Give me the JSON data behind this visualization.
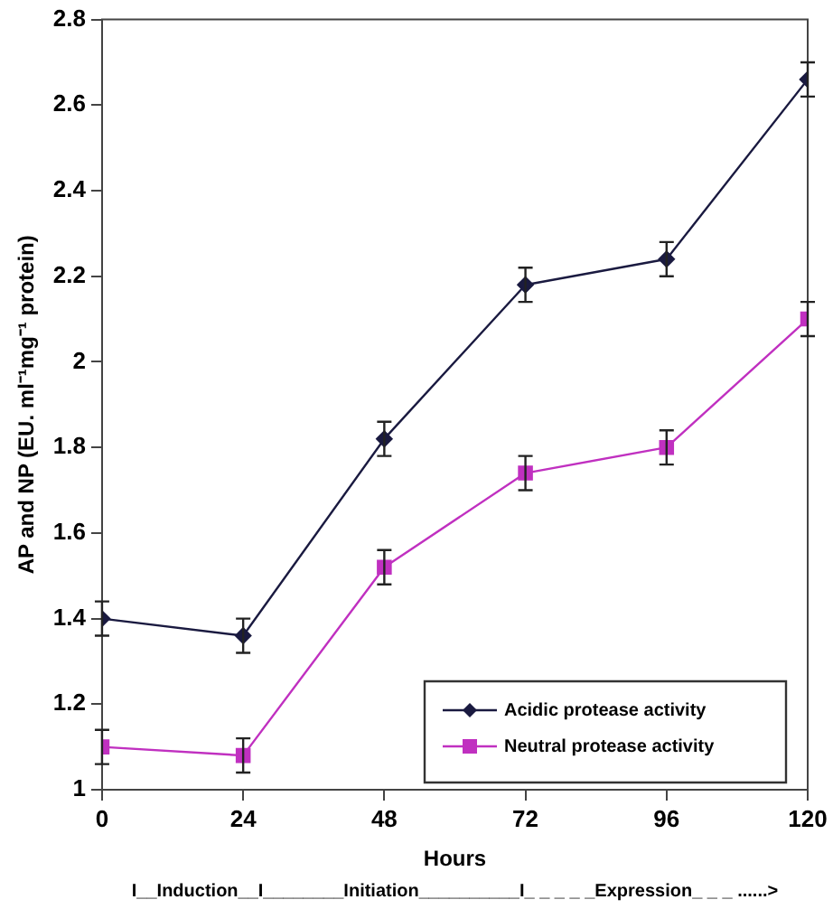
{
  "chart_data": {
    "type": "line",
    "xlabel": "Hours",
    "ylabel": "AP and NP (EU. ml⁻¹mg⁻¹ protein)",
    "x": [
      0,
      24,
      48,
      72,
      96,
      120
    ],
    "series": [
      {
        "name": "Acidic protease activity",
        "color": "#1a1a40",
        "marker": "diamond",
        "values": [
          1.4,
          1.36,
          1.82,
          2.18,
          2.24,
          2.66
        ],
        "errors": [
          0.04,
          0.04,
          0.04,
          0.04,
          0.04,
          0.04
        ]
      },
      {
        "name": "Neutral protease activity",
        "color": "#c030c0",
        "marker": "square",
        "values": [
          1.1,
          1.08,
          1.52,
          1.74,
          1.8,
          2.1
        ],
        "errors": [
          0.04,
          0.04,
          0.04,
          0.04,
          0.04,
          0.04
        ]
      }
    ],
    "xlim": [
      0,
      120
    ],
    "xticks": [
      0,
      24,
      48,
      72,
      96,
      120
    ],
    "ylim": [
      1,
      2.8
    ],
    "yticks": [
      1,
      1.2,
      1.4,
      1.6,
      1.8,
      2,
      2.2,
      2.4,
      2.6,
      2.8
    ],
    "grid": false,
    "legend": "bottom right",
    "annotations": [
      "I__Induction__I________Initiation__________I_ _ _ _ _Expression_ _ _ ......>"
    ]
  }
}
